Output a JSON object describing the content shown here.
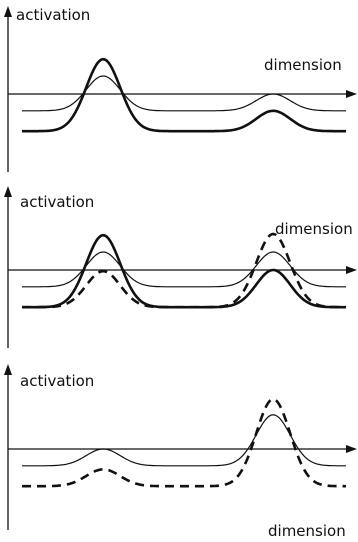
{
  "panels": [
    {
      "y_label": "activation",
      "x_label": "dimension",
      "curves": [
        {
          "style": "thin",
          "baseline": -0.28,
          "peaks": [
            {
              "center": 0.28,
              "height": 0.58
            },
            {
              "center": 0.78,
              "height": 0.28
            }
          ]
        },
        {
          "style": "thick",
          "baseline": -0.62,
          "peaks": [
            {
              "center": 0.28,
              "height": 1.2
            },
            {
              "center": 0.78,
              "height": 0.34
            }
          ]
        }
      ]
    },
    {
      "y_label": "activation",
      "x_label": "dimension",
      "curves": [
        {
          "style": "thin",
          "baseline": -0.28,
          "peaks": [
            {
              "center": 0.28,
              "height": 0.58
            },
            {
              "center": 0.78,
              "height": 0.58
            }
          ]
        },
        {
          "style": "thick",
          "baseline": -0.62,
          "peaks": [
            {
              "center": 0.28,
              "height": 1.2
            },
            {
              "center": 0.78,
              "height": 0.62
            }
          ]
        },
        {
          "style": "dashed",
          "baseline": -0.62,
          "peaks": [
            {
              "center": 0.28,
              "height": 0.6
            },
            {
              "center": 0.78,
              "height": 1.22
            }
          ]
        }
      ]
    },
    {
      "y_label": "activation",
      "x_label": "dimension",
      "curves": [
        {
          "style": "thin",
          "baseline": -0.28,
          "peaks": [
            {
              "center": 0.28,
              "height": 0.28
            },
            {
              "center": 0.78,
              "height": 0.85
            }
          ]
        },
        {
          "style": "dashed",
          "baseline": -0.62,
          "peaks": [
            {
              "center": 0.28,
              "height": 0.28
            },
            {
              "center": 0.78,
              "height": 1.45
            }
          ]
        }
      ]
    }
  ]
}
